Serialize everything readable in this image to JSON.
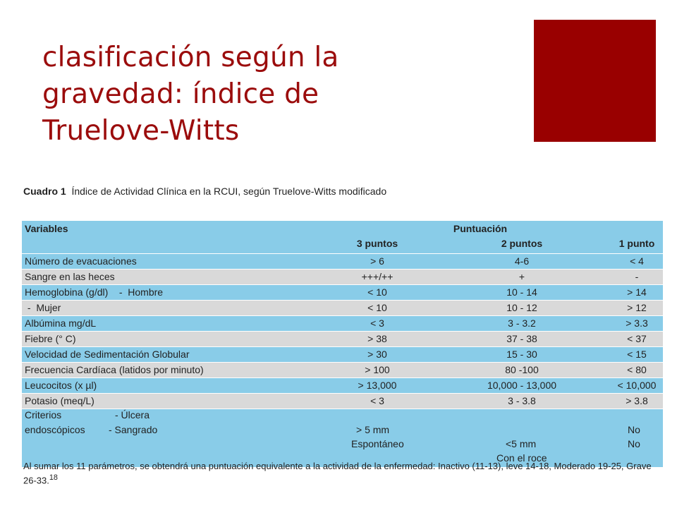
{
  "slide": {
    "title": "clasificación según la\ngravedad: índice de\nTruelove-Witts",
    "accent_color": "#990000"
  },
  "table": {
    "caption_label": "Cuadro 1",
    "caption_text": "Índice de Actividad Clínica en la RCUI, según Truelove-Witts modificado",
    "header": {
      "variables": "Variables",
      "puntuacion": "Puntuación",
      "col3": "3 puntos",
      "col2": "2 puntos",
      "col1": "1 punto"
    },
    "rows": [
      {
        "variable": "Número de evacuaciones",
        "p3": "> 6",
        "p2": "4-6",
        "p1": "< 4"
      },
      {
        "variable": "Sangre en las heces",
        "p3": "+++/++",
        "p2": "+",
        "p1": "-"
      },
      {
        "variable": "Hemoglobina (g/dl)    -  Hombre",
        "p3": "< 10",
        "p2": "10 - 14",
        "p1": "> 14"
      },
      {
        "variable": " -  Mujer",
        "p3": "< 10",
        "p2": "10 - 12",
        "p1": "> 12"
      },
      {
        "variable": "Albúmina mg/dL",
        "p3": "< 3",
        "p2": "3 - 3.2",
        "p1": "> 3.3"
      },
      {
        "variable": "Fiebre (° C)",
        "p3": "> 38",
        "p2": "37 - 38",
        "p1": "< 37"
      },
      {
        "variable": "Velocidad de Sedimentación Globular",
        "p3": "> 30",
        "p2": "15 - 30",
        "p1": "< 15"
      },
      {
        "variable": "Frecuencia Cardíaca (latidos por minuto)",
        "p3": "> 100",
        "p2": "80 -100",
        "p1": "< 80"
      },
      {
        "variable": "Leucocitos (x µl)",
        "p3": "> 13,000",
        "p2": "10,000 - 13,000",
        "p1": "< 10,000"
      },
      {
        "variable": "Potasio (meq/L)",
        "p3": "< 3",
        "p2": "3 - 3.8",
        "p1": "> 3.8"
      }
    ],
    "criterios": {
      "label1": "Criterios",
      "label2": "endoscópicos",
      "sub1": "- Úlcera",
      "sub2": "- Sangrado",
      "ulcera_p3": "> 5 mm",
      "ulcera_p1": "No",
      "sangrado_p3": "Espontáneo",
      "sangrado_p2a": "<5 mm",
      "sangrado_p2b": "Con el roce",
      "sangrado_p1": "No"
    },
    "footnote": "Al sumar los 11 parámetros, se obtendrá una puntuación equivalente a la actividad de la enfermedad: Inactivo (11-13), leve 14-18, Moderado 19-25, Grave 26-33.",
    "footnote_ref": "18"
  }
}
